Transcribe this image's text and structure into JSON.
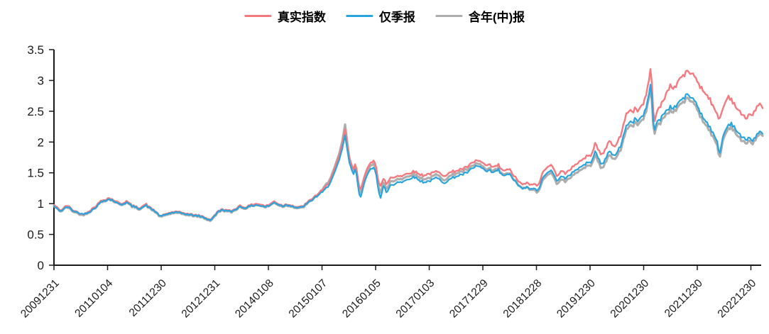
{
  "background": "#ffffff",
  "axis_color": "#1a1a1a",
  "legend": [
    {
      "label": "真实指数",
      "color": "#F5797E"
    },
    {
      "label": "仅季报",
      "color": "#29A5DE"
    },
    {
      "label": "含年(中)报",
      "color": "#ADADAD"
    }
  ],
  "chart_data": {
    "type": "line",
    "title": "",
    "xlabel": "",
    "ylabel": "",
    "legend_position": "top-center",
    "grid": false,
    "x_unit": "decimal_year",
    "xlim": [
      2010.0,
      2023.25
    ],
    "ylim": [
      0,
      3.5
    ],
    "y_axis": {
      "ticks": [
        0,
        0.5,
        1,
        1.5,
        2,
        2.5,
        3,
        3.5
      ]
    },
    "x_axis": {
      "tick_years": [
        2010,
        2011,
        2012,
        2013,
        2014,
        2015,
        2016,
        2017,
        2018,
        2019,
        2020,
        2021,
        2022,
        2023
      ],
      "tick_labels": [
        "20091231",
        "20110104",
        "20111230",
        "20121231",
        "20140108",
        "20150107",
        "20160105",
        "20170103",
        "20171229",
        "20181228",
        "20191230",
        "20201230",
        "20211230",
        "20221230"
      ]
    },
    "x": [
      2010.0,
      2010.08,
      2010.13,
      2010.21,
      2010.26,
      2010.34,
      2010.42,
      2010.53,
      2010.61,
      2010.69,
      2010.79,
      2010.87,
      2010.93,
      2011.01,
      2011.09,
      2011.19,
      2011.27,
      2011.35,
      2011.46,
      2011.59,
      2011.67,
      2011.72,
      2011.8,
      2011.88,
      2011.99,
      2012.07,
      2012.15,
      2012.25,
      2012.33,
      2012.41,
      2012.52,
      2012.6,
      2012.7,
      2012.78,
      2012.86,
      2012.91,
      2012.99,
      2013.07,
      2013.15,
      2013.23,
      2013.31,
      2013.39,
      2013.47,
      2013.55,
      2013.63,
      2013.71,
      2013.79,
      2013.87,
      2013.95,
      2014.03,
      2014.11,
      2014.18,
      2014.26,
      2014.34,
      2014.42,
      2014.5,
      2014.58,
      2014.66,
      2014.77,
      2014.87,
      2014.95,
      2015.03,
      2015.11,
      2015.17,
      2015.22,
      2015.27,
      2015.32,
      2015.38,
      2015.43,
      2015.47,
      2015.5,
      2015.54,
      2015.58,
      2015.62,
      2015.66,
      2015.69,
      2015.72,
      2015.76,
      2015.8,
      2015.84,
      2015.88,
      2015.93,
      2015.97,
      2016.01,
      2016.05,
      2016.09,
      2016.15,
      2016.21,
      2016.28,
      2016.34,
      2016.41,
      2016.49,
      2016.57,
      2016.65,
      2016.73,
      2016.81,
      2016.89,
      2016.97,
      2017.05,
      2017.13,
      2017.21,
      2017.28,
      2017.36,
      2017.44,
      2017.52,
      2017.6,
      2017.68,
      2017.76,
      2017.84,
      2017.89,
      2017.95,
      2018.03,
      2018.08,
      2018.13,
      2018.18,
      2018.24,
      2018.29,
      2018.34,
      2018.42,
      2018.5,
      2018.56,
      2018.61,
      2018.67,
      2018.74,
      2018.81,
      2018.87,
      2018.94,
      2019.01,
      2019.06,
      2019.11,
      2019.17,
      2019.22,
      2019.27,
      2019.32,
      2019.38,
      2019.43,
      2019.48,
      2019.54,
      2019.59,
      2019.67,
      2019.73,
      2019.8,
      2019.87,
      2019.93,
      2020.0,
      2020.07,
      2020.1,
      2020.16,
      2020.21,
      2020.25,
      2020.32,
      2020.38,
      2020.45,
      2020.52,
      2020.58,
      2020.63,
      2020.69,
      2020.74,
      2020.79,
      2020.85,
      2020.9,
      2020.95,
      2021.01,
      2021.06,
      2021.1,
      2021.12,
      2021.15,
      2021.19,
      2021.24,
      2021.31,
      2021.38,
      2021.44,
      2021.51,
      2021.58,
      2021.64,
      2021.71,
      2021.77,
      2021.84,
      2021.91,
      2021.97,
      2022.04,
      2022.1,
      2022.17,
      2022.24,
      2022.3,
      2022.37,
      2022.42,
      2022.48,
      2022.53,
      2022.58,
      2022.63,
      2022.7,
      2022.77,
      2022.83,
      2022.9,
      2022.97,
      2023.03,
      2023.1,
      2023.16,
      2023.23
    ],
    "series": [
      {
        "name": "真实指数",
        "color": "#F5797E",
        "values": [
          0.98,
          0.92,
          0.89,
          0.95,
          0.97,
          0.9,
          0.87,
          0.82,
          0.86,
          0.9,
          0.97,
          1.04,
          1.06,
          1.09,
          1.07,
          1.02,
          1.0,
          1.04,
          0.97,
          0.93,
          0.97,
          0.99,
          0.93,
          0.89,
          0.79,
          0.83,
          0.85,
          0.87,
          0.86,
          0.85,
          0.83,
          0.82,
          0.81,
          0.79,
          0.76,
          0.74,
          0.8,
          0.89,
          0.91,
          0.89,
          0.88,
          0.92,
          0.97,
          0.94,
          0.96,
          0.99,
          1.0,
          0.98,
          0.96,
          0.99,
          1.04,
          1.0,
          0.97,
          0.99,
          0.98,
          0.95,
          0.94,
          0.97,
          1.05,
          1.12,
          1.18,
          1.23,
          1.32,
          1.43,
          1.52,
          1.63,
          1.77,
          1.95,
          2.22,
          1.95,
          1.74,
          1.67,
          1.52,
          1.66,
          1.48,
          1.28,
          1.25,
          1.35,
          1.46,
          1.54,
          1.63,
          1.68,
          1.72,
          1.62,
          1.35,
          1.28,
          1.4,
          1.31,
          1.43,
          1.42,
          1.46,
          1.45,
          1.48,
          1.51,
          1.52,
          1.48,
          1.46,
          1.48,
          1.49,
          1.52,
          1.49,
          1.46,
          1.49,
          1.52,
          1.54,
          1.56,
          1.58,
          1.63,
          1.67,
          1.71,
          1.68,
          1.64,
          1.6,
          1.63,
          1.59,
          1.6,
          1.63,
          1.55,
          1.54,
          1.55,
          1.48,
          1.42,
          1.36,
          1.3,
          1.34,
          1.3,
          1.33,
          1.28,
          1.35,
          1.49,
          1.58,
          1.62,
          1.64,
          1.55,
          1.46,
          1.5,
          1.54,
          1.47,
          1.52,
          1.6,
          1.64,
          1.68,
          1.72,
          1.77,
          1.76,
          1.92,
          2.02,
          1.85,
          1.78,
          1.82,
          1.96,
          2.02,
          1.9,
          2.04,
          2.1,
          2.3,
          2.48,
          2.54,
          2.47,
          2.57,
          2.5,
          2.58,
          2.65,
          2.8,
          3.05,
          3.18,
          3.0,
          2.32,
          2.48,
          2.58,
          2.7,
          2.83,
          2.93,
          2.86,
          3.0,
          3.06,
          3.1,
          3.15,
          3.1,
          3.05,
          2.93,
          2.84,
          2.78,
          2.7,
          2.55,
          2.44,
          2.38,
          2.55,
          2.66,
          2.75,
          2.7,
          2.61,
          2.5,
          2.45,
          2.38,
          2.46,
          2.43,
          2.56,
          2.6,
          2.54
        ]
      },
      {
        "name": "仅季报",
        "color": "#29A5DE",
        "values": [
          0.96,
          0.9,
          0.88,
          0.93,
          0.95,
          0.89,
          0.86,
          0.83,
          0.85,
          0.88,
          0.95,
          1.02,
          1.05,
          1.07,
          1.06,
          1.0,
          0.99,
          1.02,
          0.96,
          0.92,
          0.95,
          0.97,
          0.92,
          0.88,
          0.79,
          0.82,
          0.84,
          0.86,
          0.85,
          0.84,
          0.82,
          0.81,
          0.8,
          0.78,
          0.75,
          0.73,
          0.79,
          0.88,
          0.9,
          0.88,
          0.87,
          0.91,
          0.95,
          0.93,
          0.95,
          0.97,
          0.98,
          0.96,
          0.95,
          0.97,
          1.02,
          0.99,
          0.96,
          0.98,
          0.97,
          0.94,
          0.93,
          0.96,
          1.03,
          1.1,
          1.15,
          1.2,
          1.28,
          1.38,
          1.47,
          1.57,
          1.7,
          1.88,
          2.12,
          1.88,
          1.68,
          1.6,
          1.44,
          1.58,
          1.38,
          1.16,
          1.12,
          1.24,
          1.36,
          1.44,
          1.53,
          1.58,
          1.6,
          1.5,
          1.22,
          1.08,
          1.29,
          1.17,
          1.31,
          1.3,
          1.36,
          1.35,
          1.38,
          1.42,
          1.43,
          1.38,
          1.35,
          1.36,
          1.38,
          1.42,
          1.38,
          1.34,
          1.38,
          1.42,
          1.45,
          1.47,
          1.49,
          1.54,
          1.58,
          1.62,
          1.59,
          1.55,
          1.5,
          1.54,
          1.5,
          1.52,
          1.55,
          1.47,
          1.46,
          1.47,
          1.41,
          1.35,
          1.29,
          1.23,
          1.27,
          1.23,
          1.26,
          1.2,
          1.27,
          1.4,
          1.49,
          1.53,
          1.55,
          1.46,
          1.38,
          1.42,
          1.45,
          1.39,
          1.44,
          1.51,
          1.55,
          1.58,
          1.62,
          1.66,
          1.65,
          1.8,
          1.88,
          1.72,
          1.62,
          1.66,
          1.8,
          1.85,
          1.76,
          1.88,
          1.93,
          2.12,
          2.28,
          2.35,
          2.3,
          2.4,
          2.34,
          2.4,
          2.46,
          2.58,
          2.82,
          2.93,
          2.76,
          2.18,
          2.32,
          2.36,
          2.48,
          2.52,
          2.58,
          2.55,
          2.64,
          2.69,
          2.73,
          2.77,
          2.7,
          2.66,
          2.52,
          2.4,
          2.34,
          2.24,
          2.12,
          2.0,
          1.8,
          2.1,
          2.2,
          2.28,
          2.31,
          2.24,
          2.13,
          2.08,
          2.04,
          2.08,
          2.01,
          2.11,
          2.15,
          2.13
        ]
      },
      {
        "name": "含年(中)报",
        "color": "#ADADAD",
        "values": [
          0.96,
          0.9,
          0.87,
          0.93,
          0.94,
          0.88,
          0.85,
          0.81,
          0.84,
          0.88,
          0.95,
          1.02,
          1.04,
          1.07,
          1.05,
          1.0,
          0.98,
          1.02,
          0.95,
          0.91,
          0.95,
          0.97,
          0.91,
          0.87,
          0.78,
          0.81,
          0.83,
          0.85,
          0.84,
          0.83,
          0.81,
          0.8,
          0.79,
          0.77,
          0.74,
          0.72,
          0.78,
          0.87,
          0.89,
          0.87,
          0.86,
          0.9,
          0.95,
          0.92,
          0.94,
          0.97,
          0.98,
          0.96,
          0.94,
          0.97,
          1.02,
          0.98,
          0.95,
          0.97,
          0.96,
          0.93,
          0.92,
          0.95,
          1.03,
          1.1,
          1.16,
          1.25,
          1.35,
          1.45,
          1.55,
          1.66,
          1.8,
          2.0,
          2.3,
          2.0,
          1.76,
          1.66,
          1.5,
          1.64,
          1.44,
          1.22,
          1.18,
          1.3,
          1.42,
          1.5,
          1.58,
          1.64,
          1.66,
          1.56,
          1.28,
          1.17,
          1.34,
          1.23,
          1.37,
          1.36,
          1.41,
          1.4,
          1.43,
          1.47,
          1.47,
          1.43,
          1.4,
          1.41,
          1.43,
          1.47,
          1.43,
          1.39,
          1.43,
          1.47,
          1.5,
          1.52,
          1.54,
          1.58,
          1.62,
          1.66,
          1.63,
          1.58,
          1.53,
          1.57,
          1.53,
          1.55,
          1.57,
          1.49,
          1.48,
          1.48,
          1.42,
          1.36,
          1.3,
          1.24,
          1.27,
          1.22,
          1.24,
          1.17,
          1.24,
          1.36,
          1.45,
          1.49,
          1.51,
          1.42,
          1.33,
          1.37,
          1.4,
          1.34,
          1.39,
          1.46,
          1.5,
          1.53,
          1.57,
          1.61,
          1.6,
          1.74,
          1.82,
          1.66,
          1.55,
          1.6,
          1.74,
          1.79,
          1.7,
          1.82,
          1.87,
          2.06,
          2.22,
          2.29,
          2.24,
          2.34,
          2.28,
          2.34,
          2.4,
          2.52,
          2.76,
          2.88,
          2.7,
          2.12,
          2.26,
          2.3,
          2.42,
          2.46,
          2.52,
          2.49,
          2.58,
          2.63,
          2.67,
          2.71,
          2.64,
          2.6,
          2.46,
          2.34,
          2.28,
          2.18,
          2.06,
          1.94,
          1.74,
          2.04,
          2.14,
          2.22,
          2.25,
          2.18,
          2.07,
          2.02,
          1.98,
          2.03,
          1.96,
          2.07,
          2.11,
          2.1
        ]
      }
    ]
  }
}
